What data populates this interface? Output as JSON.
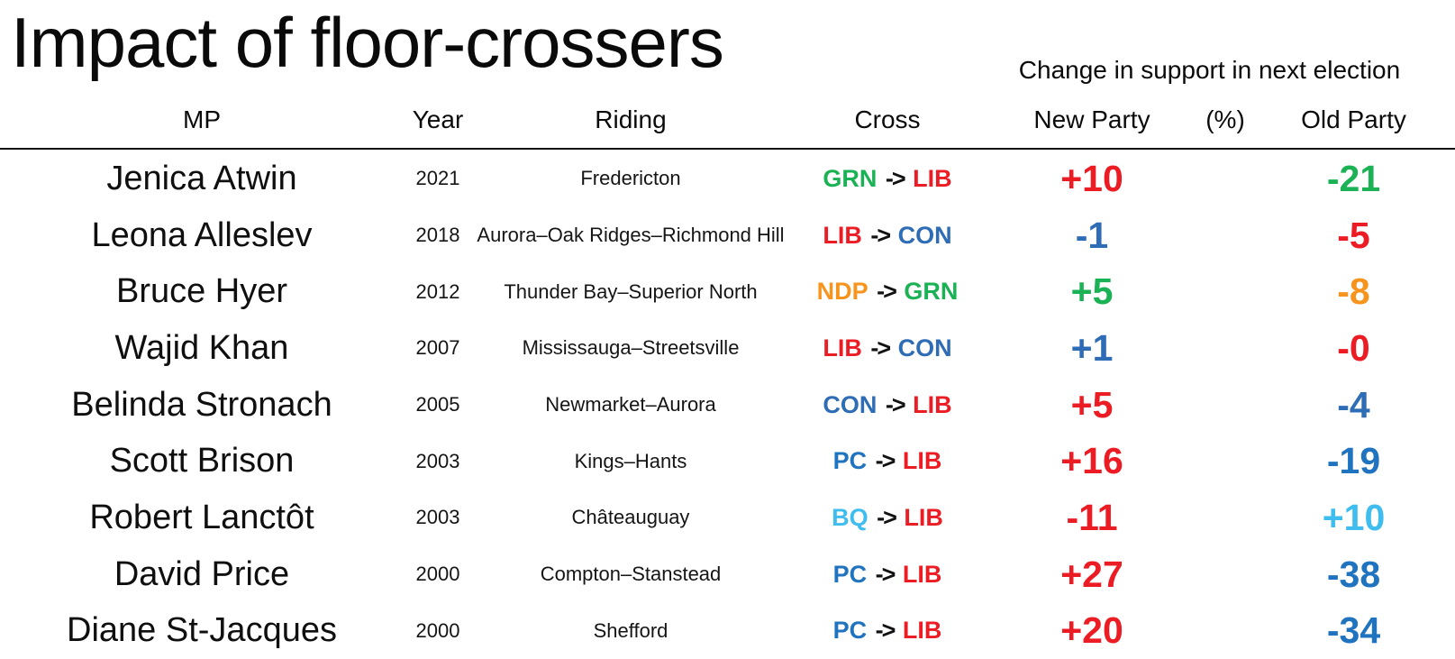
{
  "chart_data": {
    "type": "table",
    "title": "Impact of floor-crossers",
    "subtitle": "Change in support in next election",
    "columns": [
      "MP",
      "Year",
      "Riding",
      "Cross",
      "New Party",
      "(%)",
      "Old Party"
    ],
    "rows": [
      {
        "mp": "Jenica Atwin",
        "year": "2021",
        "riding": "Fredericton",
        "from": "GRN",
        "to": "LIB",
        "new_change": "+10",
        "old_change": "-21",
        "new_color": "LIB",
        "old_color": "GRN"
      },
      {
        "mp": "Leona Alleslev",
        "year": "2018",
        "riding": "Aurora–Oak Ridges–Richmond Hill",
        "from": "LIB",
        "to": "CON",
        "new_change": "-1",
        "old_change": "-5",
        "new_color": "CON",
        "old_color": "LIB"
      },
      {
        "mp": "Bruce Hyer",
        "year": "2012",
        "riding": "Thunder Bay–Superior North",
        "from": "NDP",
        "to": "GRN",
        "new_change": "+5",
        "old_change": "-8",
        "new_color": "GRN",
        "old_color": "NDP"
      },
      {
        "mp": "Wajid Khan",
        "year": "2007",
        "riding": "Mississauga–Streetsville",
        "from": "LIB",
        "to": "CON",
        "new_change": "+1",
        "old_change": "-0",
        "new_color": "CON",
        "old_color": "LIB"
      },
      {
        "mp": "Belinda Stronach",
        "year": "2005",
        "riding": "Newmarket–Aurora",
        "from": "CON",
        "to": "LIB",
        "new_change": "+5",
        "old_change": "-4",
        "new_color": "LIB",
        "old_color": "CON"
      },
      {
        "mp": "Scott Brison",
        "year": "2003",
        "riding": "Kings–Hants",
        "from": "PC",
        "to": "LIB",
        "new_change": "+16",
        "old_change": "-19",
        "new_color": "LIB",
        "old_color": "PC"
      },
      {
        "mp": "Robert Lanctôt",
        "year": "2003",
        "riding": "Châteauguay",
        "from": "BQ",
        "to": "LIB",
        "new_change": "-11",
        "old_change": "+10",
        "new_color": "LIB",
        "old_color": "BQ"
      },
      {
        "mp": "David Price",
        "year": "2000",
        "riding": "Compton–Stanstead",
        "from": "PC",
        "to": "LIB",
        "new_change": "+27",
        "old_change": "-38",
        "new_color": "LIB",
        "old_color": "PC"
      },
      {
        "mp": "Diane St-Jacques",
        "year": "2000",
        "riding": "Shefford",
        "from": "PC",
        "to": "LIB",
        "new_change": "+20",
        "old_change": "-34",
        "new_color": "LIB",
        "old_color": "PC"
      }
    ]
  },
  "arrow": "->",
  "party_colors": {
    "LIB": "#EC1C24",
    "CON": "#2E6DB5",
    "GRN": "#1BB155",
    "NDP": "#F7941E",
    "PC": "#2073BE",
    "BQ": "#3FBDEE"
  }
}
